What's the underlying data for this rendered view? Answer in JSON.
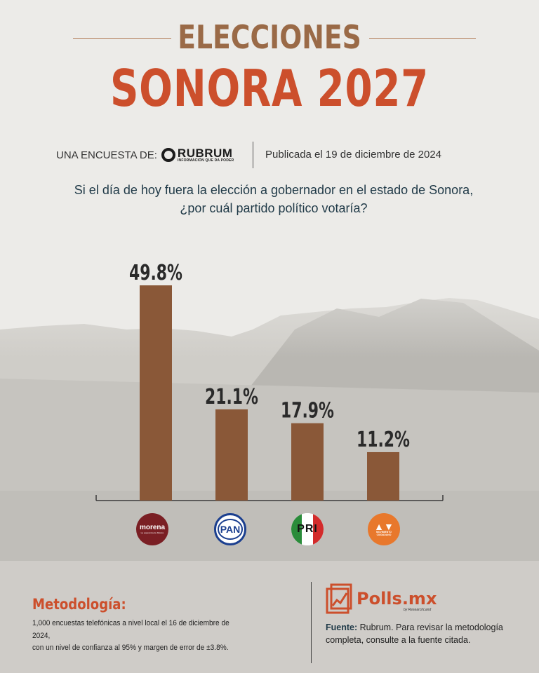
{
  "header": {
    "title_line1": "ELECCIONES",
    "title_line2": "SONORA 2027",
    "byline_prefix": "UNA ENCUESTA DE:",
    "pollster_name": "RUBRUM",
    "pollster_tagline": "INFORMACIÓN QUE DA PODER",
    "published": "Publicada el 19 de diciembre de 2024"
  },
  "question": {
    "line1": "Si el día de hoy fuera la elección a gobernador en el estado de Sonora,",
    "line2": "¿por cuál partido político votaría?"
  },
  "chart_data": {
    "type": "bar",
    "categories": [
      "Morena",
      "PAN",
      "PRI",
      "Movimiento Ciudadano"
    ],
    "values": [
      49.8,
      21.1,
      17.9,
      11.2
    ],
    "value_labels": [
      "49.8%",
      "21.1%",
      "17.9%",
      "11.2%"
    ],
    "unit": "%",
    "ylim": [
      0,
      55
    ],
    "grid": false,
    "bar_color": "#8a5838",
    "title": "",
    "xlabel": "",
    "ylabel": ""
  },
  "logos": {
    "morena": {
      "name": "morena",
      "tagline": "La esperanza de México",
      "color": "#7a1f24"
    },
    "pan": {
      "name": "PAN",
      "color": "#1b3f8f"
    },
    "pri": {
      "name": "PRI",
      "colors": [
        "#2a8c3a",
        "#ffffff",
        "#d32b2b"
      ]
    },
    "mc": {
      "symbol": "bird-icon",
      "line1": "MOVIMIENTO",
      "line2": "CIUDADANO",
      "color": "#e8782c"
    }
  },
  "methodology": {
    "title": "Metodología:",
    "line1": "1,000 encuestas telefónicas a nivel local el 16 de diciembre de 2024,",
    "line2": "con un nivel de confianza al 95% y margen de error de ±3.8%."
  },
  "brand": {
    "name": "Polls.mx",
    "sub": "by ResearchLand",
    "accent": "#cc4f2c"
  },
  "source": {
    "label": "Fuente:",
    "text": " Rubrum. Para revisar la metodología completa, consulte a la fuente citada."
  }
}
